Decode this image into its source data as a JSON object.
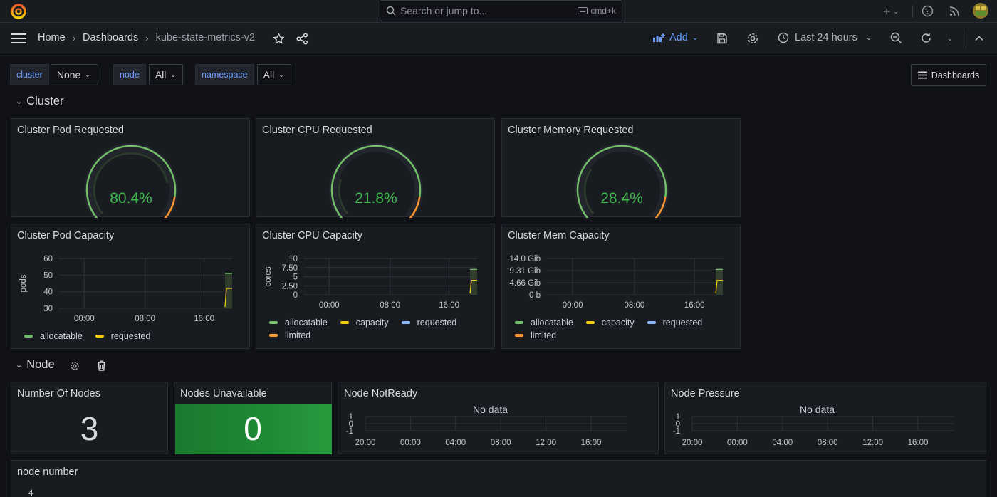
{
  "topbar": {
    "search_placeholder": "Search or jump to...",
    "search_shortcut": "cmd+k",
    "plus_icon": "plus-icon",
    "help_icon": "help-icon",
    "rss_icon": "rss-icon"
  },
  "breadcrumb": {
    "home": "Home",
    "dashboards": "Dashboards",
    "current": "kube-state-metrics-v2"
  },
  "navbar": {
    "add_label": "Add",
    "time_range": "Last 24 hours"
  },
  "variables": [
    {
      "label": "cluster",
      "value": "None"
    },
    {
      "label": "node",
      "value": "All"
    },
    {
      "label": "namespace",
      "value": "All"
    }
  ],
  "dashboards_button": "Dashboards",
  "rows": {
    "cluster": "Cluster",
    "node": "Node"
  },
  "colors": {
    "green": "#73bf69",
    "yellow": "#f2cc0c",
    "blue": "#8ab8ff",
    "orange": "#ff9830",
    "gauge_text": "#3fb950",
    "stat_green": "#1f8a34"
  },
  "gauges": [
    {
      "title": "Cluster Pod Requested",
      "value": 80.4,
      "display": "80.4%"
    },
    {
      "title": "Cluster CPU Requested",
      "value": 21.8,
      "display": "21.8%"
    },
    {
      "title": "Cluster Memory Requested",
      "value": 28.4,
      "display": "28.4%"
    }
  ],
  "capacity_panels": [
    {
      "title": "Cluster Pod Capacity",
      "ylabel": "pods",
      "yticks": [
        "60",
        "50",
        "40",
        "30"
      ],
      "xticks": [
        "00:00",
        "08:00",
        "16:00"
      ],
      "legend": [
        {
          "name": "allocatable",
          "color": "#73bf69"
        },
        {
          "name": "requested",
          "color": "#f2cc0c"
        }
      ]
    },
    {
      "title": "Cluster CPU Capacity",
      "ylabel": "cores",
      "yticks": [
        "10",
        "7.50",
        "5",
        "2.50",
        "0"
      ],
      "xticks": [
        "00:00",
        "08:00",
        "16:00"
      ],
      "legend": [
        {
          "name": "allocatable",
          "color": "#73bf69"
        },
        {
          "name": "capacity",
          "color": "#f2cc0c"
        },
        {
          "name": "requested",
          "color": "#8ab8ff"
        },
        {
          "name": "limited",
          "color": "#ff9830"
        }
      ]
    },
    {
      "title": "Cluster Mem Capacity",
      "ylabel": "",
      "yticks": [
        "14.0 Gib",
        "9.31 Gib",
        "4.66 Gib",
        "0 b"
      ],
      "xticks": [
        "00:00",
        "08:00",
        "16:00"
      ],
      "legend": [
        {
          "name": "allocatable",
          "color": "#73bf69"
        },
        {
          "name": "capacity",
          "color": "#f2cc0c"
        },
        {
          "name": "requested",
          "color": "#8ab8ff"
        },
        {
          "name": "limited",
          "color": "#ff9830"
        }
      ]
    }
  ],
  "stats": [
    {
      "title": "Number Of Nodes",
      "value": "3"
    },
    {
      "title": "Nodes Unavailable",
      "value": "0"
    }
  ],
  "nodedata_panels": [
    {
      "title": "Node NotReady",
      "nodata": "No data",
      "yticks": [
        "1",
        "0",
        "-1"
      ],
      "xticks": [
        "20:00",
        "00:00",
        "04:00",
        "08:00",
        "12:00",
        "16:00"
      ]
    },
    {
      "title": "Node Pressure",
      "nodata": "No data",
      "yticks": [
        "1",
        "0",
        "-1"
      ],
      "xticks": [
        "20:00",
        "00:00",
        "04:00",
        "08:00",
        "12:00",
        "16:00"
      ]
    }
  ],
  "bottom_panel": {
    "title": "node number",
    "first_tick": "4"
  }
}
